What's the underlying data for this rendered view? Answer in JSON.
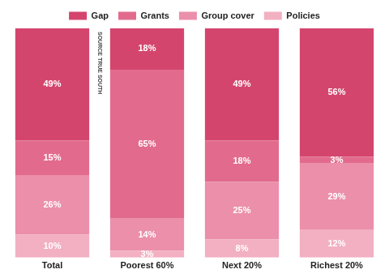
{
  "chart_data": {
    "type": "bar",
    "stacked": true,
    "categories": [
      "Total",
      "Poorest 60%",
      "Next 20%",
      "Richest 20%"
    ],
    "series": [
      {
        "name": "Policies",
        "color": "#f2b0c2",
        "values": [
          10,
          3,
          8,
          12
        ],
        "value_labels": [
          "10%",
          "3%",
          "8%",
          "12%"
        ]
      },
      {
        "name": "Group cover",
        "color": "#eb8faa",
        "values": [
          26,
          14,
          25,
          29
        ],
        "value_labels": [
          "26%",
          "14%",
          "25%",
          "29%"
        ]
      },
      {
        "name": "Grants",
        "color": "#e26b8d",
        "values": [
          15,
          65,
          18,
          3
        ],
        "value_labels": [
          "15%",
          "65%",
          "18%",
          "3%"
        ]
      },
      {
        "name": "Gap",
        "color": "#d4456d",
        "values": [
          49,
          18,
          49,
          56
        ],
        "value_labels": [
          "49%",
          "18%",
          "49%",
          "56%"
        ]
      }
    ],
    "ylim": [
      0,
      100
    ],
    "data_labels": true,
    "tick_labels": "x",
    "grid": false,
    "legend": "top",
    "annotations": [
      "SOURCE TRUE SOUTH"
    ]
  }
}
